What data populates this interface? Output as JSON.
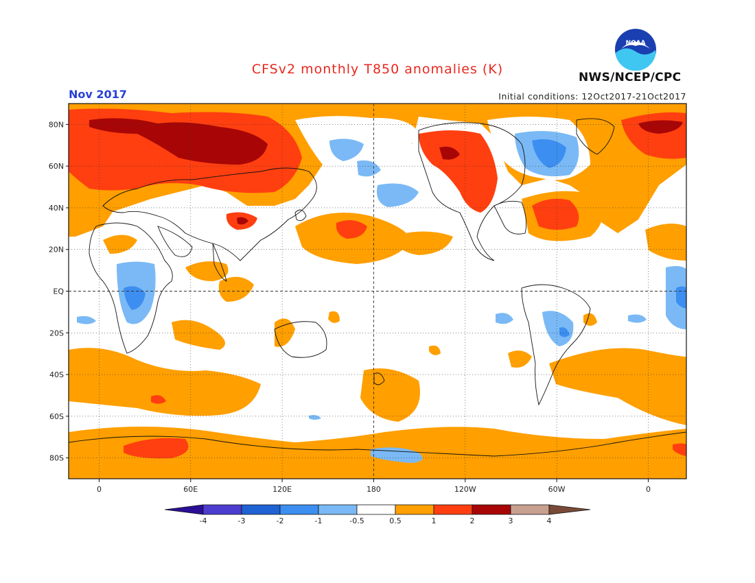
{
  "header": {
    "title": "CFSv2 monthly T850 anomalies (K)",
    "month": "Nov 2017",
    "initial_conditions": "Initial conditions: 12Oct2017-21Oct2017",
    "agency": "NWS/NCEP/CPC",
    "logo_text": "NOAA"
  },
  "map": {
    "lat_labels": [
      "80N",
      "60N",
      "40N",
      "20N",
      "EQ",
      "20S",
      "40S",
      "60S",
      "80S"
    ],
    "lat_values": [
      80,
      60,
      40,
      20,
      0,
      -20,
      -40,
      -60,
      -80
    ],
    "lon_labels": [
      "0",
      "60E",
      "120E",
      "180",
      "120W",
      "60W",
      "0"
    ],
    "lon_values": [
      0,
      60,
      120,
      180,
      240,
      300,
      360
    ],
    "lon_range": [
      -20,
      385
    ],
    "lat_range": [
      -90,
      90
    ]
  },
  "colorbar": {
    "labels": [
      "-4",
      "-3",
      "-2",
      "-1",
      "-0.5",
      "0.5",
      "1",
      "2",
      "3",
      "4"
    ],
    "colors": [
      "#2a0f96",
      "#4c3ccf",
      "#1f62d4",
      "#3c8ef0",
      "#7ab9f5",
      "#ffffff",
      "#ff9f00",
      "#ff3f10",
      "#a80606",
      "#c8a090",
      "#7a4a38"
    ]
  },
  "anomalies": {
    "warm_1": "#ff9f00",
    "warm_2": "#ff3f10",
    "warm_3": "#a80606",
    "cold_1": "#7ab9f5",
    "cold_2": "#3c8ef0"
  }
}
